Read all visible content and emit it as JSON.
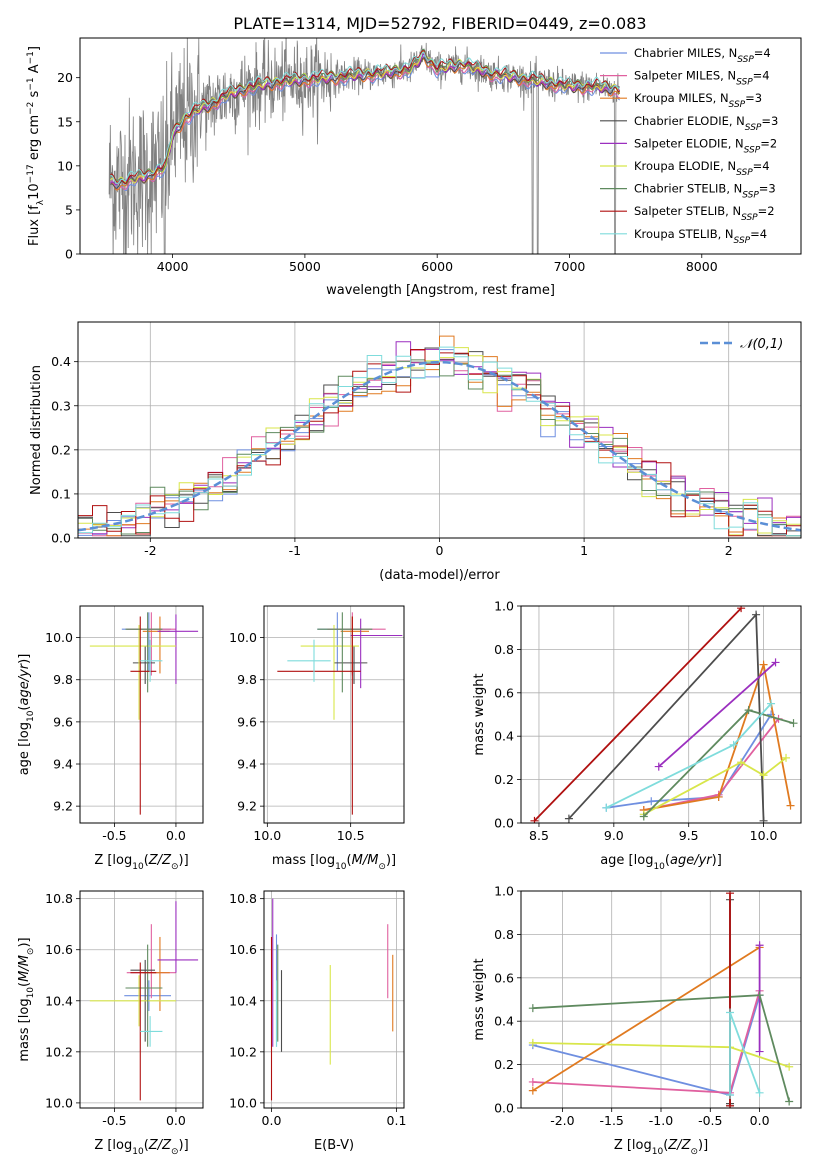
{
  "figure": {
    "title": "PLATE=1314, MJD=52792, FIBERID=0449, z=0.083"
  },
  "colors": {
    "axis": "#000000",
    "grid": "#b0b0b0",
    "spectrum": "#808080",
    "normal_curve": "#5b8fd6"
  },
  "model_colors": [
    "#6f8fe0",
    "#e0609f",
    "#e07a20",
    "#4d4d4d",
    "#9b2fbf",
    "#d8e64a",
    "#5f8a5f",
    "#b01010",
    "#7fdcdc"
  ],
  "chart_data": [
    {
      "id": "spectrum",
      "type": "line",
      "xlabel": "wavelength [Angstrom, rest frame]",
      "ylabel": "Flux [f_λ 10^-17 erg cm^-2 s^-1 A^-1]",
      "xlim": [
        3300,
        8750
      ],
      "ylim": [
        0,
        24.5
      ],
      "xticks": [
        4000,
        5000,
        6000,
        7000,
        8000
      ],
      "yticks": [
        0,
        5,
        10,
        15,
        20
      ],
      "grid": false,
      "legend_position": "right",
      "legend": [
        "Chabrier MILES, N_SSP=4",
        "Salpeter MILES, N_SSP=4",
        "Kroupa MILES, N_SSP=3",
        "Chabrier ELODIE, N_SSP=3",
        "Salpeter ELODIE, N_SSP=2",
        "Kroupa ELODIE, N_SSP=4",
        "Chabrier STELIB, N_SSP=3",
        "Salpeter STELIB, N_SSP=2",
        "Kroupa STELIB, N_SSP=4"
      ],
      "model_curve_knots": {
        "x": [
          3530,
          3600,
          3700,
          3800,
          3900,
          3950,
          4000,
          4100,
          4200,
          4300,
          4400,
          4500,
          4600,
          4800,
          5000,
          5200,
          5400,
          5600,
          5800,
          5900,
          6000,
          6200,
          6400,
          6600,
          6800,
          7000,
          7200,
          7400,
          7700,
          8000,
          8300
        ],
        "y": [
          8.2,
          8.0,
          8.5,
          8.8,
          9.5,
          10.0,
          13.5,
          15.5,
          16.5,
          17.0,
          18.0,
          18.5,
          19.0,
          19.5,
          19.8,
          20.0,
          20.3,
          20.5,
          21.0,
          22.5,
          21.0,
          21.5,
          20.5,
          20.0,
          19.5,
          19.0,
          19.0,
          18.5,
          18.0,
          17.8,
          17.5
        ]
      }
    },
    {
      "id": "residual-histogram",
      "type": "histogram",
      "xlabel": "(data-model)/error",
      "ylabel": "Normed distribution",
      "xlim": [
        -2.5,
        2.5
      ],
      "ylim": [
        0,
        0.49
      ],
      "xticks": [
        -2,
        -1,
        0,
        1,
        2
      ],
      "yticks": [
        0.0,
        0.1,
        0.2,
        0.3,
        0.4
      ],
      "grid": true,
      "legend": [
        "𝒩(0,1)"
      ],
      "legend_position": "top-right",
      "bin_width": 0.1,
      "bins_from": -2.5
    },
    {
      "id": "age-vs-Z",
      "type": "scatter-errorbar",
      "xlabel": "Z [log10(Z/Z⊙)]",
      "ylabel": "age [log10(age/yr)]",
      "xlim": [
        -0.78,
        0.22
      ],
      "ylim": [
        9.12,
        10.15
      ],
      "xticks": [
        -0.5,
        0.0
      ],
      "yticks": [
        9.2,
        9.4,
        9.6,
        9.8,
        10.0
      ],
      "grid": true,
      "points": [
        {
          "x": -0.22,
          "y": 10.04,
          "xe": [
            0.22,
            0.18
          ],
          "ye": [
            0.2,
            0.08
          ]
        },
        {
          "x": -0.2,
          "y": 10.04,
          "xe": [
            0.2,
            0.2
          ],
          "ye": [
            0.22,
            0.08
          ]
        },
        {
          "x": -0.13,
          "y": 10.03,
          "xe": [
            0.14,
            0.08
          ],
          "ye": [
            0.2,
            0.07
          ]
        },
        {
          "x": -0.25,
          "y": 9.88,
          "xe": [
            0.1,
            0.08
          ],
          "ye": [
            0.1,
            0.08
          ]
        },
        {
          "x": 0.0,
          "y": 10.03,
          "xe": [
            0.15,
            0.18
          ],
          "ye": [
            0.25,
            0.08
          ]
        },
        {
          "x": -0.3,
          "y": 9.96,
          "xe": [
            0.4,
            0.3
          ],
          "ye": [
            0.35,
            0.1
          ]
        },
        {
          "x": -0.23,
          "y": 10.04,
          "xe": [
            0.18,
            0.12
          ],
          "ye": [
            0.3,
            0.08
          ]
        },
        {
          "x": -0.29,
          "y": 9.84,
          "xe": [
            0.08,
            0.13
          ],
          "ye": [
            0.68,
            0.26
          ]
        },
        {
          "x": -0.21,
          "y": 9.89,
          "xe": [
            0.08,
            0.1
          ],
          "ye": [
            0.1,
            0.1
          ]
        }
      ]
    },
    {
      "id": "age-vs-mass",
      "type": "scatter-errorbar",
      "xlabel": "mass [log10(M/M⊙)]",
      "ylabel": "",
      "xlim": [
        9.98,
        10.82
      ],
      "ylim": [
        9.12,
        10.15
      ],
      "xticks": [
        10.0,
        10.5
      ],
      "yticks": [
        9.2,
        9.4,
        9.6,
        9.8,
        10.0
      ],
      "grid": true,
      "points": [
        {
          "x": 10.42,
          "y": 10.04,
          "xe": [
            0.12,
            0.15
          ],
          "ye": [
            0.2,
            0.08
          ]
        },
        {
          "x": 10.51,
          "y": 10.04,
          "xe": [
            0.15,
            0.2
          ],
          "ye": [
            0.22,
            0.08
          ]
        },
        {
          "x": 10.51,
          "y": 10.03,
          "xe": [
            0.07,
            0.1
          ],
          "ye": [
            0.2,
            0.07
          ]
        },
        {
          "x": 10.52,
          "y": 9.88,
          "xe": [
            0.12,
            0.08
          ],
          "ye": [
            0.1,
            0.08
          ]
        },
        {
          "x": 10.56,
          "y": 10.01,
          "xe": [
            0.06,
            0.25
          ],
          "ye": [
            0.25,
            0.08
          ]
        },
        {
          "x": 10.4,
          "y": 9.96,
          "xe": [
            0.2,
            0.15
          ],
          "ye": [
            0.35,
            0.1
          ]
        },
        {
          "x": 10.45,
          "y": 10.04,
          "xe": [
            0.15,
            0.18
          ],
          "ye": [
            0.3,
            0.08
          ]
        },
        {
          "x": 10.51,
          "y": 9.84,
          "xe": [
            0.45,
            0.05
          ],
          "ye": [
            0.68,
            0.26
          ]
        },
        {
          "x": 10.28,
          "y": 9.89,
          "xe": [
            0.16,
            0.1
          ],
          "ye": [
            0.1,
            0.1
          ]
        }
      ]
    },
    {
      "id": "weight-vs-age",
      "type": "line",
      "xlabel": "age [log10(age/yr)]",
      "ylabel": "mass weight",
      "xlim": [
        8.38,
        10.25
      ],
      "ylim": [
        0,
        1.0
      ],
      "xticks": [
        8.5,
        9.0,
        9.5,
        10.0
      ],
      "yticks": [
        0.0,
        0.2,
        0.4,
        0.6,
        0.8,
        1.0
      ],
      "grid": true,
      "series": [
        {
          "x": [
            8.95,
            9.25,
            9.7,
            10.05
          ],
          "y": [
            0.07,
            0.1,
            0.12,
            0.5
          ]
        },
        {
          "x": [
            9.2,
            9.7,
            10.1
          ],
          "y": [
            0.06,
            0.13,
            0.48
          ]
        },
        {
          "x": [
            9.2,
            9.7,
            10.0,
            10.18
          ],
          "y": [
            0.06,
            0.12,
            0.73,
            0.08
          ]
        },
        {
          "x": [
            8.7,
            9.95,
            10.0
          ],
          "y": [
            0.02,
            0.96,
            0.01
          ]
        },
        {
          "x": [
            9.3,
            10.08
          ],
          "y": [
            0.26,
            0.74
          ]
        },
        {
          "x": [
            9.2,
            9.85,
            10.0,
            10.15
          ],
          "y": [
            0.04,
            0.28,
            0.22,
            0.3
          ]
        },
        {
          "x": [
            9.2,
            9.9,
            10.2
          ],
          "y": [
            0.03,
            0.52,
            0.46
          ]
        },
        {
          "x": [
            8.47,
            9.85
          ],
          "y": [
            0.01,
            0.99
          ]
        },
        {
          "x": [
            8.95,
            9.8,
            10.05
          ],
          "y": [
            0.07,
            0.36,
            0.55
          ]
        }
      ]
    },
    {
      "id": "mass-vs-Z",
      "type": "scatter-errorbar",
      "xlabel": "Z [log10(Z/Z⊙)]",
      "ylabel": "mass [log10(M/M⊙)]",
      "xlim": [
        -0.78,
        0.22
      ],
      "ylim": [
        9.98,
        10.83
      ],
      "xticks": [
        -0.5,
        0.0
      ],
      "yticks": [
        10.0,
        10.2,
        10.4,
        10.6,
        10.8
      ],
      "grid": true,
      "points": [
        {
          "x": -0.22,
          "y": 10.42,
          "xe": [
            0.2,
            0.18
          ],
          "ye": [
            0.06,
            0.06
          ]
        },
        {
          "x": -0.2,
          "y": 10.51,
          "xe": [
            0.2,
            0.2
          ],
          "ye": [
            0.1,
            0.19
          ]
        },
        {
          "x": -0.13,
          "y": 10.51,
          "xe": [
            0.14,
            0.08
          ],
          "ye": [
            0.15,
            0.14
          ]
        },
        {
          "x": -0.25,
          "y": 10.52,
          "xe": [
            0.12,
            0.08
          ],
          "ye": [
            0.28,
            0.04
          ]
        },
        {
          "x": 0.0,
          "y": 10.56,
          "xe": [
            0.15,
            0.18
          ],
          "ye": [
            0.05,
            0.23
          ]
        },
        {
          "x": -0.3,
          "y": 10.4,
          "xe": [
            0.4,
            0.3
          ],
          "ye": [
            0.1,
            0.1
          ]
        },
        {
          "x": -0.23,
          "y": 10.45,
          "xe": [
            0.18,
            0.12
          ],
          "ye": [
            0.23,
            0.17
          ]
        },
        {
          "x": -0.29,
          "y": 10.51,
          "xe": [
            0.08,
            0.13
          ],
          "ye": [
            0.5,
            0.04
          ]
        },
        {
          "x": -0.21,
          "y": 10.28,
          "xe": [
            0.08,
            0.1
          ],
          "ye": [
            0.06,
            0.06
          ]
        }
      ]
    },
    {
      "id": "mass-vs-EBV",
      "type": "scatter-errorbar",
      "xlabel": "E(B-V)",
      "ylabel": "",
      "xlim": [
        -0.006,
        0.106
      ],
      "ylim": [
        9.98,
        10.83
      ],
      "xticks": [
        0.0,
        0.1
      ],
      "yticks": [
        10.0,
        10.2,
        10.4,
        10.6,
        10.8
      ],
      "grid": true,
      "points": [
        {
          "x": 0.004,
          "y": 10.44,
          "ye": [
            0.22,
            0.22
          ]
        },
        {
          "x": 0.093,
          "y": 10.55,
          "ye": [
            0.14,
            0.15
          ]
        },
        {
          "x": 0.097,
          "y": 10.43,
          "ye": [
            0.15,
            0.15
          ]
        },
        {
          "x": 0.008,
          "y": 10.36,
          "ye": [
            0.16,
            0.16
          ]
        },
        {
          "x": 0.001,
          "y": 10.5,
          "ye": [
            0.28,
            0.3
          ]
        },
        {
          "x": 0.047,
          "y": 10.34,
          "ye": [
            0.19,
            0.2
          ]
        },
        {
          "x": 0.005,
          "y": 10.43,
          "ye": [
            0.19,
            0.19
          ]
        },
        {
          "x": 0.0,
          "y": 10.45,
          "ye": [
            0.44,
            0.2
          ]
        },
        {
          "x": 0.004,
          "y": 10.35,
          "ye": [
            0.13,
            0.13
          ]
        }
      ]
    },
    {
      "id": "weight-vs-Z",
      "type": "line",
      "xlabel": "Z [log10(Z/Z⊙)]",
      "ylabel": "mass weight",
      "xlim": [
        -2.42,
        0.42
      ],
      "ylim": [
        0,
        1.0
      ],
      "xticks": [
        -2.0,
        -1.5,
        -1.0,
        -0.5,
        0.0
      ],
      "yticks": [
        0.0,
        0.2,
        0.4,
        0.6,
        0.8,
        1.0
      ],
      "grid": true,
      "series": [
        {
          "x": [
            -2.3,
            -0.3,
            0.0
          ],
          "y": [
            0.29,
            0.06,
            0.52
          ]
        },
        {
          "x": [
            -2.3,
            -0.3,
            0.0
          ],
          "y": [
            0.12,
            0.07,
            0.54
          ]
        },
        {
          "x": [
            -2.3,
            0.0
          ],
          "y": [
            0.08,
            0.74
          ]
        },
        {
          "x": [
            -0.3,
            -0.3,
            -0.3
          ],
          "y": [
            0.02,
            0.96,
            0.01
          ]
        },
        {
          "x": [
            0.0,
            0.0
          ],
          "y": [
            0.26,
            0.75
          ]
        },
        {
          "x": [
            -2.3,
            -0.3,
            0.3
          ],
          "y": [
            0.3,
            0.28,
            0.19
          ]
        },
        {
          "x": [
            -2.3,
            0.0,
            0.3
          ],
          "y": [
            0.46,
            0.52,
            0.03
          ]
        },
        {
          "x": [
            -0.3,
            -0.3
          ],
          "y": [
            0.01,
            0.99
          ]
        },
        {
          "x": [
            -0.3,
            -0.3,
            0.0
          ],
          "y": [
            0.06,
            0.44,
            0.07
          ]
        }
      ]
    }
  ]
}
